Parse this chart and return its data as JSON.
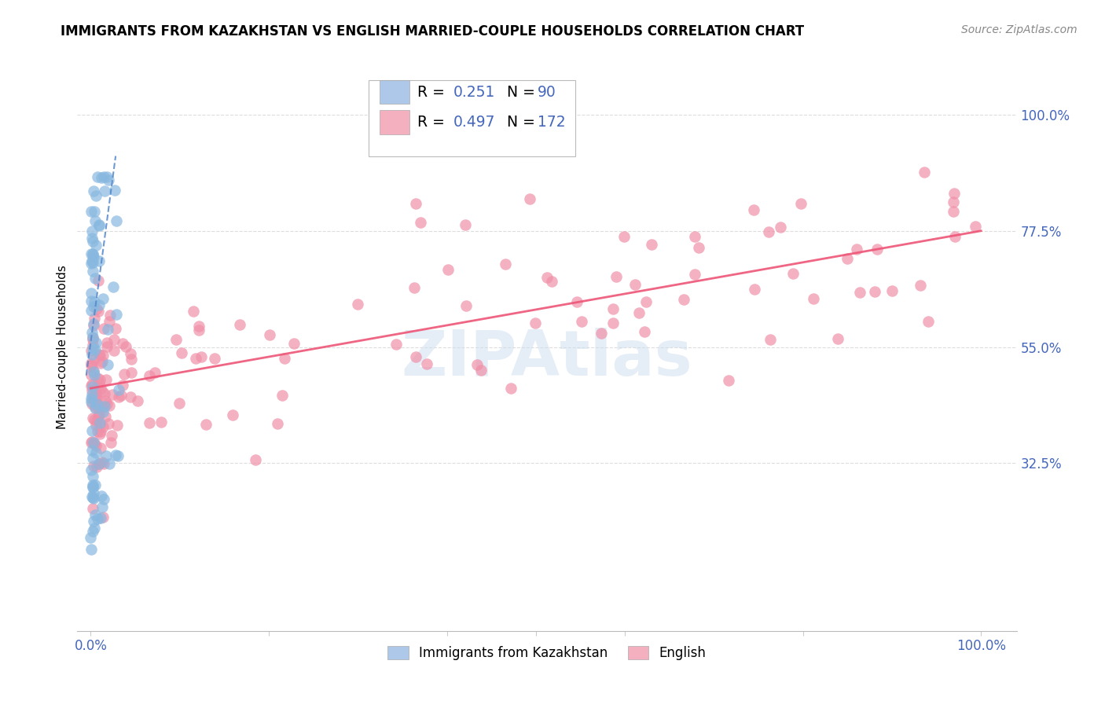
{
  "title": "IMMIGRANTS FROM KAZAKHSTAN VS ENGLISH MARRIED-COUPLE HOUSEHOLDS CORRELATION CHART",
  "source": "Source: ZipAtlas.com",
  "ylabel": "Married-couple Households",
  "yticks": [
    "100.0%",
    "77.5%",
    "55.0%",
    "32.5%"
  ],
  "ytick_vals": [
    1.0,
    0.775,
    0.55,
    0.325
  ],
  "legend_r_blue": "0.251",
  "legend_n_blue": "90",
  "legend_r_pink": "0.497",
  "legend_n_pink": "172",
  "blue_color": "#adc8e8",
  "pink_color": "#f5b0c0",
  "blue_scatter_color": "#88b8e0",
  "pink_scatter_color": "#f090a8",
  "blue_trend_color": "#5588cc",
  "pink_trend_color": "#ee5577",
  "grid_color": "#dddddd",
  "title_fontsize": 12,
  "source_fontsize": 10,
  "tick_color": "#4466bb",
  "watermark_color": "#ccddef",
  "watermark_alpha": 0.5
}
